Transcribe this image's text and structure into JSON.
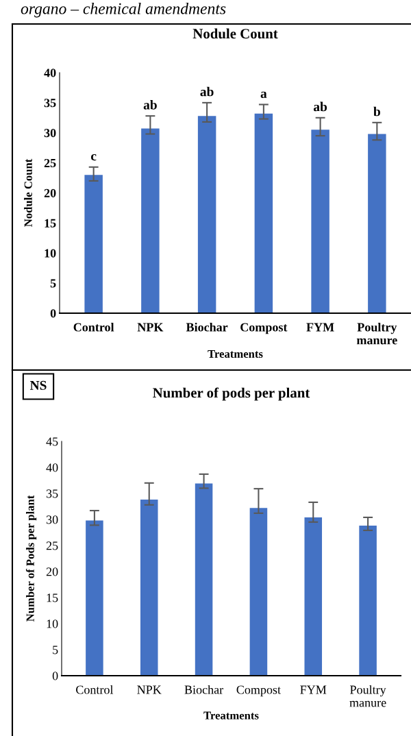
{
  "chart_data": [
    {
      "type": "bar",
      "title": "Nodule Count",
      "xlabel": "Treatments",
      "ylabel": "Nodule Count",
      "categories": [
        "Control",
        "NPK",
        "Biochar",
        "Compost",
        "FYM",
        "Poultry manure"
      ],
      "series": [
        {
          "color": "#4472c4",
          "values": [
            23.0,
            30.7,
            32.8,
            33.2,
            30.5,
            29.8
          ],
          "errors": [
            [
              22.0,
              24.3
            ],
            [
              29.8,
              32.8
            ],
            [
              31.8,
              35.0
            ],
            [
              32.3,
              34.7
            ],
            [
              29.5,
              32.5
            ],
            [
              28.8,
              31.7
            ]
          ]
        }
      ],
      "ylim": [
        0,
        40
      ],
      "yticks": [
        0,
        5,
        10,
        15,
        20,
        25,
        30,
        35,
        40
      ],
      "grid": false,
      "legend": false,
      "annotations": [
        "organo – chemical amendments",
        {
          "text": "c",
          "x": "Control",
          "y": 24.3
        },
        {
          "text": "ab",
          "x": "NPK",
          "y": 32.8
        },
        {
          "text": "ab",
          "x": "Biochar",
          "y": 35.0
        },
        {
          "text": "a",
          "x": "Compost",
          "y": 34.7
        },
        {
          "text": "ab",
          "x": "FYM",
          "y": 32.5
        },
        {
          "text": "b",
          "x": "Poultry manure",
          "y": 31.7
        }
      ]
    },
    {
      "type": "bar",
      "title": "Number of pods per plant",
      "xlabel": "Treatments",
      "ylabel": "Number of Pods per plant",
      "categories": [
        "Control",
        "NPK",
        "Biochar",
        "Compost",
        "FYM",
        "Poultry manure"
      ],
      "series": [
        {
          "color": "#4472c4",
          "values": [
            29.8,
            33.8,
            36.9,
            32.2,
            30.4,
            28.8
          ],
          "errors": [
            [
              28.9,
              31.7
            ],
            [
              32.8,
              37.0
            ],
            [
              36.0,
              38.7
            ],
            [
              31.2,
              35.9
            ],
            [
              29.5,
              33.3
            ],
            [
              27.9,
              30.4
            ]
          ]
        }
      ],
      "ylim": [
        0,
        45
      ],
      "yticks": [
        0,
        5,
        10,
        15,
        20,
        25,
        30,
        35,
        40,
        45
      ],
      "grid": false,
      "legend": false,
      "annotations": [
        "NS"
      ]
    }
  ]
}
